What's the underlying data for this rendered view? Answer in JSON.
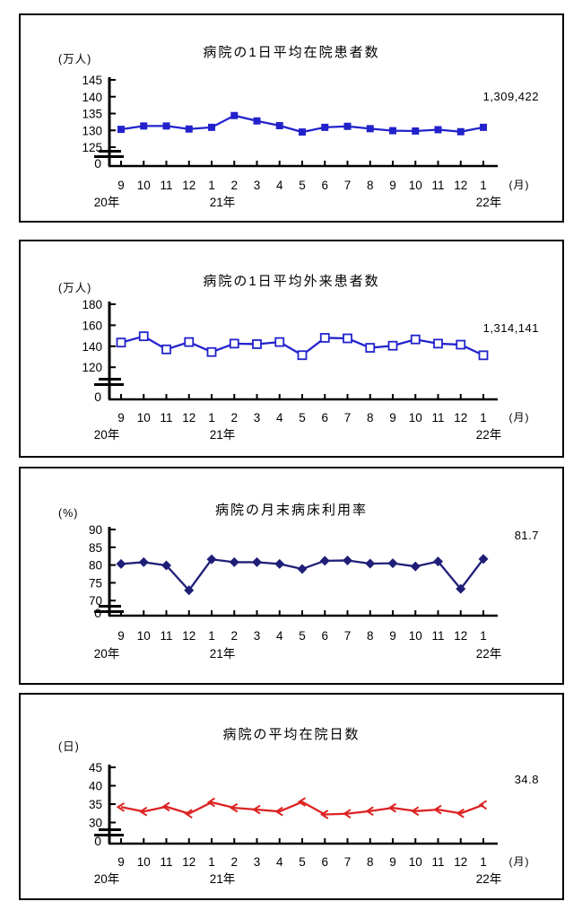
{
  "chart_data": [
    {
      "type": "line",
      "title": "病院の1日平均在院患者数",
      "y_unit_label": "(万人)",
      "x_unit_label": "(月)",
      "zero_label": "0",
      "axis_break": true,
      "categories": [
        "9",
        "10",
        "11",
        "12",
        "1",
        "2",
        "3",
        "4",
        "5",
        "6",
        "7",
        "8",
        "9",
        "10",
        "11",
        "12",
        "1"
      ],
      "year_labels": [
        {
          "index": 0,
          "label": "20年"
        },
        {
          "index": 4,
          "label": "21年"
        },
        {
          "index": 16,
          "label": "22年"
        }
      ],
      "values": [
        130.3,
        131.3,
        131.3,
        130.4,
        130.9,
        134.4,
        132.8,
        131.4,
        129.5,
        130.9,
        131.2,
        130.5,
        129.9,
        129.8,
        130.2,
        129.6,
        130.9
      ],
      "yticks": [
        125,
        130,
        135,
        140,
        145
      ],
      "ylim": [
        125,
        145
      ],
      "annotation": "1,309,422",
      "line_color": "#2222cc",
      "marker": "square-filled",
      "grid": false,
      "legend": "none"
    },
    {
      "type": "line",
      "title": "病院の1日平均外来患者数",
      "y_unit_label": "(万人)",
      "x_unit_label": "(月)",
      "zero_label": "0",
      "axis_break": true,
      "categories": [
        "9",
        "10",
        "11",
        "12",
        "1",
        "2",
        "3",
        "4",
        "5",
        "6",
        "7",
        "8",
        "9",
        "10",
        "11",
        "12",
        "1"
      ],
      "year_labels": [
        {
          "index": 0,
          "label": "20年"
        },
        {
          "index": 4,
          "label": "21年"
        },
        {
          "index": 16,
          "label": "22年"
        }
      ],
      "values": [
        143.5,
        149.5,
        137.0,
        144.0,
        134.5,
        142.5,
        142.0,
        144.0,
        131.5,
        148.0,
        147.5,
        138.5,
        140.5,
        146.5,
        142.5,
        141.5,
        131.4
      ],
      "yticks": [
        120,
        140,
        160,
        180
      ],
      "ylim": [
        120,
        180
      ],
      "annotation": "1,314,141",
      "line_color": "#2222cc",
      "marker": "square-open",
      "grid": false,
      "legend": "none"
    },
    {
      "type": "line",
      "title": "病院の月末病床利用率",
      "y_unit_label": "(%)",
      "x_unit_label": "",
      "zero_label": "0",
      "axis_break": true,
      "categories": [
        "9",
        "10",
        "11",
        "12",
        "1",
        "2",
        "3",
        "4",
        "5",
        "6",
        "7",
        "8",
        "9",
        "10",
        "11",
        "12",
        "1"
      ],
      "year_labels": [
        {
          "index": 0,
          "label": "20年"
        },
        {
          "index": 4,
          "label": "21年"
        },
        {
          "index": 16,
          "label": "22年"
        }
      ],
      "values": [
        80.3,
        80.8,
        79.9,
        72.9,
        81.6,
        80.8,
        80.8,
        80.3,
        78.9,
        81.2,
        81.3,
        80.4,
        80.5,
        79.6,
        81.0,
        73.3,
        81.7
      ],
      "yticks": [
        70,
        75,
        80,
        85,
        90
      ],
      "ylim": [
        70,
        90
      ],
      "annotation": "81.7",
      "line_color": "#1f1f78",
      "marker": "diamond-filled",
      "grid": false,
      "legend": "none"
    },
    {
      "type": "line",
      "title": "病院の平均在院日数",
      "y_unit_label": "(日)",
      "x_unit_label": "(月)",
      "zero_label": "0",
      "axis_break": true,
      "categories": [
        "9",
        "10",
        "11",
        "12",
        "1",
        "2",
        "3",
        "4",
        "5",
        "6",
        "7",
        "8",
        "9",
        "10",
        "11",
        "12",
        "1"
      ],
      "year_labels": [
        {
          "index": 0,
          "label": "20年"
        },
        {
          "index": 4,
          "label": "21年"
        },
        {
          "index": 16,
          "label": "22年"
        }
      ],
      "values": [
        34.2,
        33.0,
        34.3,
        32.4,
        35.5,
        34.0,
        33.5,
        33.0,
        35.6,
        32.2,
        32.4,
        33.1,
        34.0,
        33.1,
        33.5,
        32.5,
        34.8
      ],
      "yticks": [
        30,
        35,
        40,
        45
      ],
      "ylim": [
        30,
        45
      ],
      "annotation": "34.8",
      "line_color": "#dd2222",
      "marker": "chevron",
      "grid": false,
      "legend": "none"
    }
  ]
}
